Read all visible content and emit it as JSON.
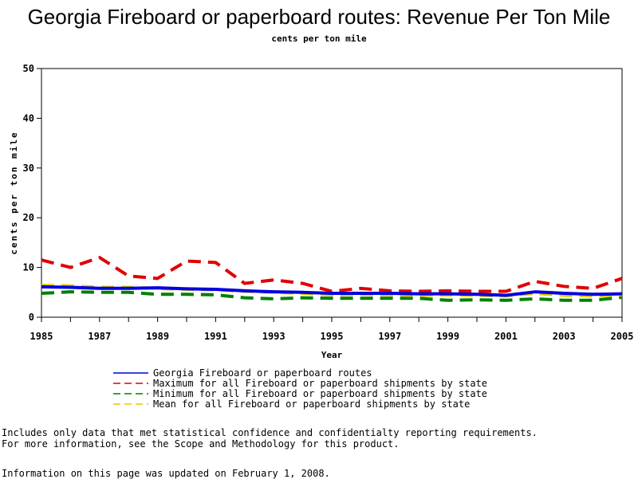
{
  "chart_data": {
    "type": "line",
    "title": "Georgia Fireboard or paperboard routes: Revenue Per Ton Mile",
    "subtitle": "cents per ton mile",
    "xlabel": "Year",
    "ylabel": "cents per ton mile",
    "xlim": [
      1985,
      2005
    ],
    "ylim": [
      0,
      50
    ],
    "x_ticks": [
      "1985",
      "1987",
      "1989",
      "1991",
      "1993",
      "1995",
      "1997",
      "1999",
      "2001",
      "2003",
      "2005"
    ],
    "y_ticks": [
      "0",
      "10",
      "20",
      "30",
      "40",
      "50"
    ],
    "grid": false,
    "legend_position": "bottom",
    "x": [
      1985,
      1986,
      1987,
      1988,
      1989,
      1990,
      1991,
      1992,
      1993,
      1994,
      1995,
      1996,
      1997,
      1998,
      1999,
      2000,
      2001,
      2002,
      2003,
      2004,
      2005
    ],
    "series": [
      {
        "name": "Maximum for all Fireboard or paperboard shipments by state",
        "color": "#e00000",
        "dash": "dashed",
        "values": [
          11.5,
          10.0,
          12.0,
          8.3,
          7.8,
          11.3,
          11.0,
          6.8,
          7.5,
          6.8,
          5.2,
          5.8,
          5.3,
          5.2,
          5.3,
          5.2,
          5.2,
          7.2,
          6.2,
          5.8,
          7.8
        ]
      },
      {
        "name": "Minimum for all Fireboard or paperboard shipments by state",
        "color": "#008000",
        "dash": "dashed",
        "values": [
          4.8,
          5.1,
          5.0,
          5.0,
          4.6,
          4.6,
          4.5,
          3.9,
          3.7,
          3.9,
          3.8,
          3.8,
          3.8,
          3.8,
          3.4,
          3.5,
          3.4,
          3.7,
          3.4,
          3.4,
          4.0
        ]
      },
      {
        "name": "Mean for all Fireboard or paperboard shipments by state",
        "color": "#e8c800",
        "dash": "dashed",
        "values": [
          6.4,
          6.3,
          6.0,
          6.0,
          5.8,
          5.6,
          5.5,
          5.2,
          5.0,
          4.8,
          4.5,
          4.6,
          4.5,
          4.4,
          4.5,
          4.4,
          4.3,
          4.8,
          4.4,
          4.3,
          4.5
        ]
      },
      {
        "name": "Georgia Fireboard or paperboard routes",
        "color": "#0000e0",
        "dash": "solid",
        "values": [
          6.1,
          6.0,
          5.8,
          5.8,
          5.9,
          5.7,
          5.6,
          5.3,
          5.1,
          5.0,
          4.8,
          4.8,
          4.8,
          4.7,
          4.7,
          4.6,
          4.4,
          5.1,
          4.8,
          4.6,
          4.7
        ]
      }
    ]
  },
  "legend_order": [
    3,
    0,
    1,
    2
  ],
  "footer": {
    "note_line1": "Includes only data that met statistical confidence and confidentialty reporting requirements.",
    "note_line2": "For more information, see the Scope and Methodology for this product.",
    "updated": "Information on this page was updated on February 1, 2008."
  }
}
